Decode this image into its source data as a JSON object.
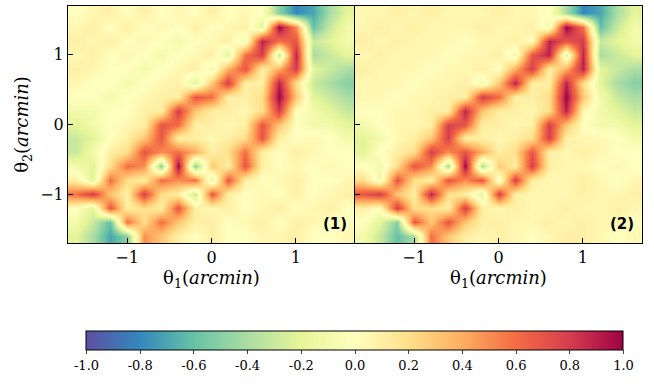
{
  "chart_data": {
    "type": "heatmap",
    "x_label": "θ1(arcmin)",
    "y_label": "θ2(arcmin)",
    "xlim": [
      -1.7,
      1.7
    ],
    "ylim": [
      -1.7,
      1.7
    ],
    "xticks": [
      -1,
      0,
      1
    ],
    "yticks": [
      -1,
      0,
      1
    ],
    "x": [
      -1.6,
      -1.4,
      -1.2,
      -1.0,
      -0.8,
      -0.6,
      -0.4,
      -0.2,
      0,
      0.2,
      0.4,
      0.6,
      0.8,
      1.0,
      1.2,
      1.4,
      1.6
    ],
    "y": [
      -1.6,
      -1.4,
      -1.2,
      -1.0,
      -0.8,
      -0.6,
      -0.4,
      -0.2,
      0,
      0.2,
      0.4,
      0.6,
      0.8,
      1.0,
      1.2,
      1.4,
      1.6
    ],
    "panels": [
      {
        "label": "(1)",
        "z": [
          [
            -0.2,
            -0.4,
            -0.7,
            -0.5,
            0.5,
            0.3,
            0.1,
            0.0,
            0.1,
            0.0,
            0.0,
            0.05,
            0.05,
            0.1,
            0.0,
            0.0,
            0.05
          ],
          [
            -0.1,
            -0.3,
            -0.6,
            0.6,
            0.2,
            0.6,
            0.3,
            0.1,
            0.1,
            0.0,
            0.05,
            0.1,
            0.0,
            0.1,
            0.05,
            0.0,
            0.0
          ],
          [
            0.0,
            -0.2,
            0.7,
            0.1,
            0.2,
            0.1,
            0.7,
            0.1,
            0.05,
            0.1,
            0.0,
            0.05,
            0.1,
            0.0,
            0.05,
            0.1,
            0.0
          ],
          [
            0.6,
            0.8,
            0.3,
            0.1,
            0.8,
            0.2,
            0.1,
            -0.3,
            0.7,
            0.1,
            0.0,
            0.05,
            0.0,
            0.1,
            0.0,
            0.05,
            0.1
          ],
          [
            0.1,
            -0.2,
            0.6,
            0.2,
            0.1,
            0.6,
            0.5,
            0.6,
            -0.2,
            0.7,
            0.1,
            0.0,
            0.05,
            0.1,
            0.0,
            0.0,
            0.05
          ],
          [
            -0.1,
            -0.2,
            0.2,
            0.6,
            0.5,
            -0.5,
            1.0,
            -0.5,
            0.3,
            0.1,
            0.7,
            0.1,
            0.0,
            0.05,
            0.0,
            0.05,
            0.0
          ],
          [
            -0.3,
            -0.1,
            0.1,
            0.2,
            0.7,
            0.5,
            0.6,
            0.4,
            0.1,
            0.2,
            0.6,
            0.1,
            0.0,
            0.1,
            0.05,
            0.0,
            0.0
          ],
          [
            -0.3,
            -0.2,
            0.0,
            0.1,
            0.3,
            0.7,
            0.1,
            0.1,
            0.05,
            0.1,
            0.2,
            0.7,
            0.1,
            0.0,
            0.05,
            0.0,
            -0.1
          ],
          [
            -0.2,
            -0.1,
            0.0,
            0.05,
            0.1,
            0.7,
            0.6,
            0.1,
            0.1,
            0.05,
            0.1,
            0.7,
            0.3,
            0.0,
            -0.1,
            -0.1,
            -0.2
          ],
          [
            -0.1,
            -0.1,
            0.0,
            0.0,
            0.1,
            0.1,
            0.8,
            0.3,
            0.1,
            0.1,
            0.05,
            0.2,
            0.8,
            0.0,
            -0.1,
            -0.2,
            -0.3
          ],
          [
            0.0,
            0.0,
            -0.1,
            0.0,
            0.05,
            0.1,
            0.1,
            0.7,
            0.6,
            0.1,
            0.1,
            0.2,
            1.0,
            0.3,
            -0.2,
            -0.3,
            -0.4
          ],
          [
            0.05,
            0.0,
            0.0,
            -0.1,
            0.0,
            0.05,
            0.1,
            -0.2,
            0.3,
            0.8,
            0.1,
            0.1,
            0.9,
            0.2,
            -0.3,
            -0.4,
            -0.5
          ],
          [
            0.1,
            0.05,
            0.0,
            0.0,
            -0.1,
            0.0,
            0.05,
            0.1,
            -0.1,
            0.4,
            0.7,
            0.1,
            0.4,
            0.8,
            -0.2,
            -0.3,
            -0.4
          ],
          [
            0.05,
            0.1,
            0.0,
            0.05,
            0.0,
            -0.1,
            0.0,
            0.05,
            0.1,
            -0.2,
            0.6,
            0.8,
            -0.3,
            0.9,
            -0.4,
            -0.3,
            -0.2
          ],
          [
            0.1,
            0.05,
            0.1,
            0.0,
            0.05,
            0.0,
            -0.1,
            0.0,
            0.05,
            0.1,
            -0.1,
            0.9,
            0.6,
            0.7,
            -0.3,
            -0.2,
            -0.1
          ],
          [
            0.05,
            0.1,
            0.0,
            0.1,
            0.0,
            0.05,
            0.0,
            0.1,
            0.0,
            0.05,
            0.1,
            -0.2,
            1.0,
            0.5,
            -0.6,
            -0.3,
            -0.1
          ],
          [
            0.0,
            0.05,
            0.1,
            0.0,
            0.1,
            0.0,
            0.05,
            0.0,
            0.1,
            0.0,
            0.05,
            0.0,
            -0.5,
            -0.8,
            -0.7,
            -0.4,
            -0.2
          ]
        ]
      },
      {
        "label": "(2)",
        "z": [
          [
            -0.1,
            -0.3,
            -0.6,
            -0.4,
            0.6,
            0.3,
            0.1,
            0.05,
            0.1,
            0.05,
            0.0,
            0.05,
            0.1,
            0.1,
            0.05,
            0.0,
            0.05
          ],
          [
            0.0,
            -0.2,
            -0.5,
            0.7,
            0.3,
            0.7,
            0.3,
            0.1,
            0.1,
            0.05,
            0.05,
            0.1,
            0.05,
            0.1,
            0.05,
            0.05,
            0.0
          ],
          [
            0.1,
            0.0,
            0.8,
            0.2,
            0.2,
            0.1,
            0.8,
            0.1,
            0.05,
            0.1,
            0.05,
            0.05,
            0.1,
            0.05,
            0.05,
            0.1,
            0.05
          ],
          [
            0.7,
            0.8,
            0.3,
            0.1,
            0.9,
            0.2,
            0.1,
            -0.2,
            0.8,
            0.1,
            0.05,
            0.05,
            0.05,
            0.1,
            0.05,
            0.05,
            0.1
          ],
          [
            0.2,
            -0.1,
            0.7,
            0.2,
            0.1,
            0.7,
            0.5,
            0.7,
            -0.1,
            0.8,
            0.1,
            0.05,
            0.05,
            0.1,
            0.05,
            0.0,
            0.05
          ],
          [
            0.0,
            -0.1,
            0.2,
            0.7,
            0.5,
            -0.4,
            1.0,
            -0.4,
            0.3,
            0.1,
            0.8,
            0.1,
            0.05,
            0.05,
            0.0,
            0.05,
            0.0
          ],
          [
            -0.2,
            0.0,
            0.1,
            0.2,
            0.8,
            0.5,
            0.7,
            0.4,
            0.1,
            0.2,
            0.7,
            0.1,
            0.05,
            0.1,
            0.05,
            0.0,
            0.0
          ],
          [
            -0.2,
            -0.1,
            0.05,
            0.1,
            0.3,
            0.8,
            0.1,
            0.1,
            0.05,
            0.1,
            0.2,
            0.8,
            0.1,
            0.05,
            0.05,
            0.0,
            -0.1
          ],
          [
            -0.1,
            0.0,
            0.05,
            0.05,
            0.1,
            0.8,
            0.7,
            0.1,
            0.1,
            0.05,
            0.1,
            0.8,
            0.3,
            0.0,
            -0.1,
            -0.1,
            -0.2
          ],
          [
            0.0,
            0.0,
            0.05,
            0.05,
            0.1,
            0.1,
            0.9,
            0.3,
            0.1,
            0.1,
            0.05,
            0.2,
            0.9,
            0.05,
            -0.1,
            -0.2,
            -0.3
          ],
          [
            0.05,
            0.05,
            0.0,
            0.05,
            0.05,
            0.1,
            0.1,
            0.8,
            0.6,
            0.1,
            0.1,
            0.2,
            1.0,
            0.3,
            -0.1,
            -0.3,
            -0.4
          ],
          [
            0.05,
            0.05,
            0.05,
            0.0,
            0.05,
            0.05,
            0.1,
            -0.1,
            0.3,
            0.9,
            0.1,
            0.1,
            0.9,
            0.2,
            -0.2,
            -0.4,
            -0.5
          ],
          [
            0.1,
            0.05,
            0.05,
            0.05,
            0.0,
            0.05,
            0.05,
            0.1,
            0.0,
            0.4,
            0.8,
            0.1,
            0.4,
            0.9,
            -0.2,
            -0.3,
            -0.4
          ],
          [
            0.05,
            0.1,
            0.05,
            0.05,
            0.05,
            0.0,
            0.05,
            0.05,
            0.1,
            -0.1,
            0.7,
            0.9,
            -0.2,
            0.9,
            -0.4,
            -0.3,
            -0.2
          ],
          [
            0.1,
            0.05,
            0.1,
            0.05,
            0.05,
            0.05,
            0.0,
            0.05,
            0.05,
            0.1,
            0.0,
            0.9,
            0.7,
            0.8,
            -0.3,
            -0.2,
            -0.1
          ],
          [
            0.05,
            0.1,
            0.05,
            0.1,
            0.05,
            0.05,
            0.05,
            0.1,
            0.05,
            0.05,
            0.1,
            -0.1,
            1.0,
            0.6,
            -0.6,
            -0.3,
            -0.1
          ],
          [
            0.05,
            0.05,
            0.1,
            0.05,
            0.1,
            0.05,
            0.05,
            0.05,
            0.1,
            0.05,
            0.05,
            0.0,
            -0.4,
            -0.8,
            -0.7,
            -0.4,
            -0.2
          ]
        ]
      }
    ],
    "colorbar": {
      "range": [
        -1,
        1
      ],
      "ticks": [
        {
          "value": -1,
          "label": "-1.0"
        },
        {
          "value": -0.8,
          "label": "-0.8"
        },
        {
          "value": -0.6,
          "label": "-0.6"
        },
        {
          "value": -0.4,
          "label": "-0.4"
        },
        {
          "value": -0.2,
          "label": "-0.2"
        },
        {
          "value": 0,
          "label": "0.0"
        },
        {
          "value": 0.2,
          "label": "0.2"
        },
        {
          "value": 0.4,
          "label": "0.4"
        },
        {
          "value": 0.6,
          "label": "0.6"
        },
        {
          "value": 0.8,
          "label": "0.8"
        },
        {
          "value": 1,
          "label": "1.0"
        }
      ]
    }
  }
}
